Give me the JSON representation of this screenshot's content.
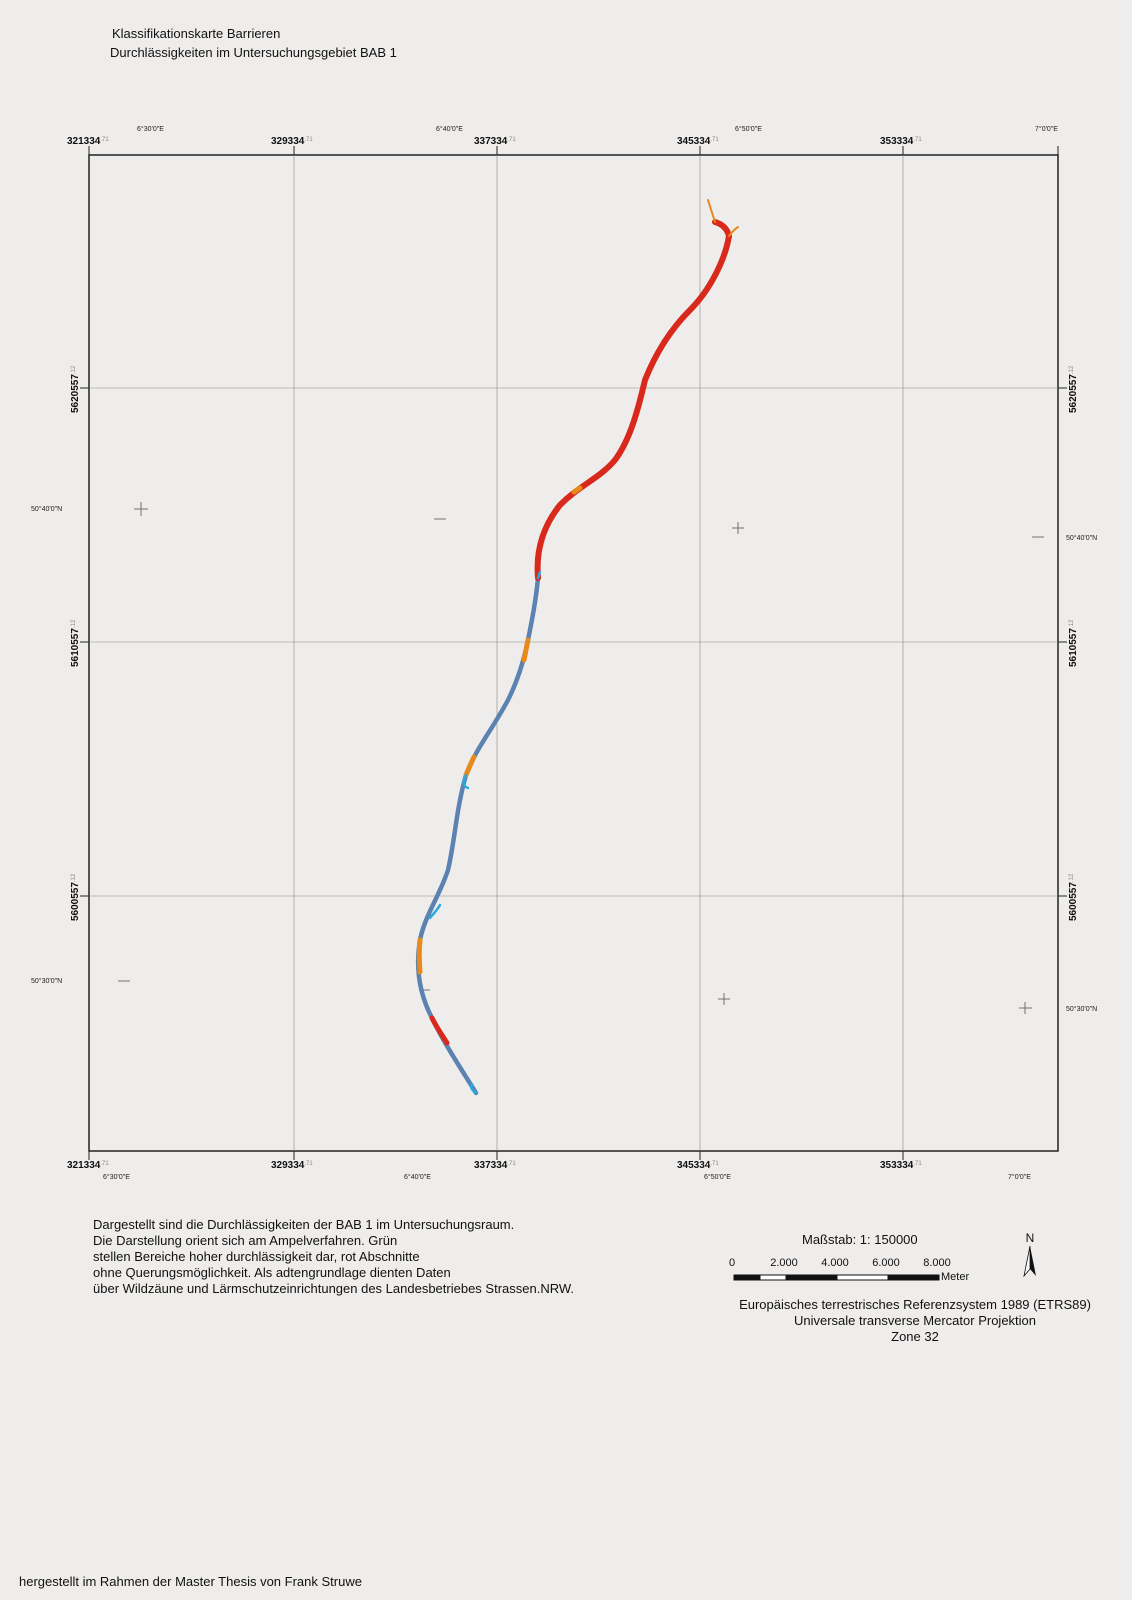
{
  "title": {
    "line1": "Klassifikationskarte Barrieren",
    "line2": "Durchlässigkeiten  im Untersuchungsgebiet BAB 1"
  },
  "map": {
    "x_grid_labels": [
      {
        "main": "321334",
        "sup": ".71"
      },
      {
        "main": "329334",
        "sup": ".71"
      },
      {
        "main": "337334",
        "sup": ".71"
      },
      {
        "main": "345334",
        "sup": ".71"
      },
      {
        "main": "353334",
        "sup": ".71"
      }
    ],
    "y_grid_labels": [
      {
        "main": "5620557",
        "sup": ".12"
      },
      {
        "main": "5610557",
        "sup": ".12"
      },
      {
        "main": "5600557",
        "sup": ".12"
      }
    ],
    "top_geo_labels": [
      "6°30'0\"E",
      "6°40'0\"E",
      "6°50'0\"E",
      "7°0'0\"E"
    ],
    "bottom_geo_labels": [
      "6°30'0\"E",
      "6°40'0\"E",
      "6°50'0\"E",
      "7°0'0\"E"
    ],
    "left_geo_labels": [
      "50°40'0\"N",
      "50°30'0\"N"
    ],
    "right_geo_labels": [
      "50°40'0\"N",
      "50°30'0\"N"
    ],
    "colors": {
      "high_permeability": "#5b82b0",
      "medium": "#e88a1a",
      "no_crossing": "#d9281c",
      "highlight": "#2aa8e0"
    }
  },
  "description": [
    "Dargestellt sind die Durchlässigkeiten der BAB 1 im Untersuchungsraum.",
    "Die Darstellung orient sich am Ampelverfahren. Grün",
    "stellen Bereiche hoher durchlässigkeit dar, rot Abschnitte",
    "ohne Querungsmöglichkeit. Als adtengrundlage dienten Daten",
    "über Wildzäune und Lärmschutzeinrichtungen des Landesbetriebes Strassen.NRW."
  ],
  "scale": {
    "title": "Maßstab: 1: 150000",
    "ticks": [
      "0",
      "2.000",
      "4.000",
      "6.000",
      "8.000"
    ],
    "unit": "Meter"
  },
  "north": "N",
  "projection": [
    "Europäisches terrestrisches Referenzsystem 1989 (ETRS89)",
    "Universale transverse Mercator Projektion",
    "Zone 32"
  ],
  "footer": "hergestellt im Rahmen der Master Thesis von Frank Struwe"
}
